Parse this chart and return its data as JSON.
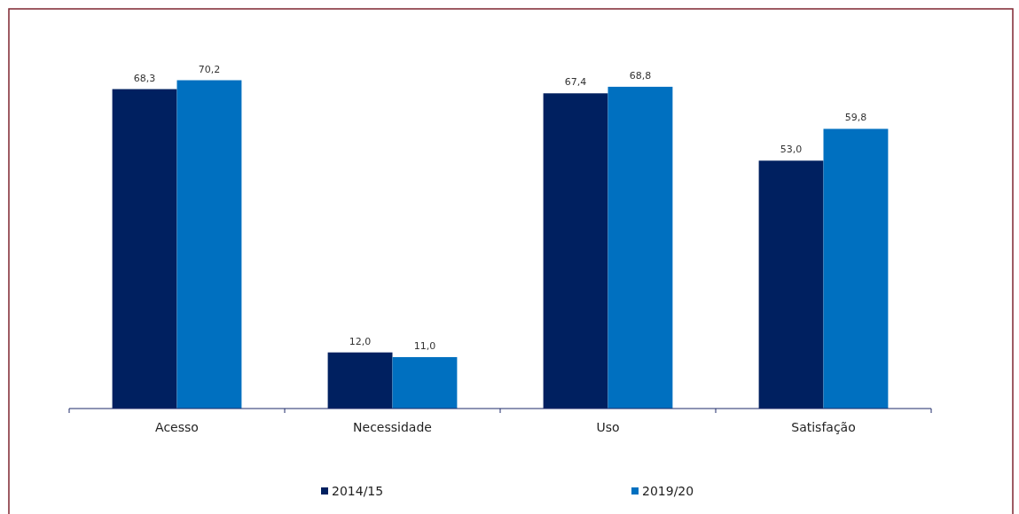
{
  "chart_data": {
    "type": "bar",
    "categories": [
      "Acesso",
      "Necessidade",
      "Uso",
      "Satisfação"
    ],
    "series": [
      {
        "name": "2014/15",
        "color": "#002060",
        "values": [
          68.3,
          12.0,
          67.4,
          53.0
        ],
        "value_labels": [
          "68,3",
          "12,0",
          "67,4",
          "53,0"
        ]
      },
      {
        "name": "2019/20",
        "color": "#0070c0",
        "values": [
          70.2,
          11.0,
          68.8,
          59.8
        ],
        "value_labels": [
          "70,2",
          "11,0",
          "68,8",
          "59,8"
        ]
      }
    ],
    "legend": "bottom"
  }
}
